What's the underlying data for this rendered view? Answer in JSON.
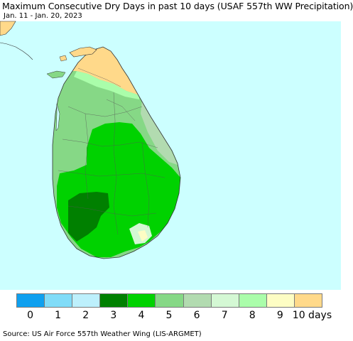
{
  "title": "Maximum Consecutive Dry Days in past 10 days (USAF 557th WW Precipitation)",
  "subtitle": "Jan. 11 - Jan. 20, 2023",
  "source": "Source: US Air Force 557th Weather Wing (LIS-ARGMET)",
  "colors": {
    "ocean": "#ccffff",
    "land_outline": "#333333",
    "mainland_background": "#e8f4d8"
  },
  "legend": {
    "unit": "days",
    "items": [
      {
        "value": "0",
        "color": "#0fa0ef"
      },
      {
        "value": "1",
        "color": "#80dcf8"
      },
      {
        "value": "2",
        "color": "#bdf0fc"
      },
      {
        "value": "3",
        "color": "#008000"
      },
      {
        "value": "4",
        "color": "#00d200"
      },
      {
        "value": "5",
        "color": "#86d886"
      },
      {
        "value": "6",
        "color": "#b2dbb0"
      },
      {
        "value": "7",
        "color": "#d4f8d4"
      },
      {
        "value": "8",
        "color": "#aafdaa"
      },
      {
        "value": "9",
        "color": "#fdfdc4"
      },
      {
        "value": "10 days",
        "color": "#ffd98a"
      }
    ]
  }
}
